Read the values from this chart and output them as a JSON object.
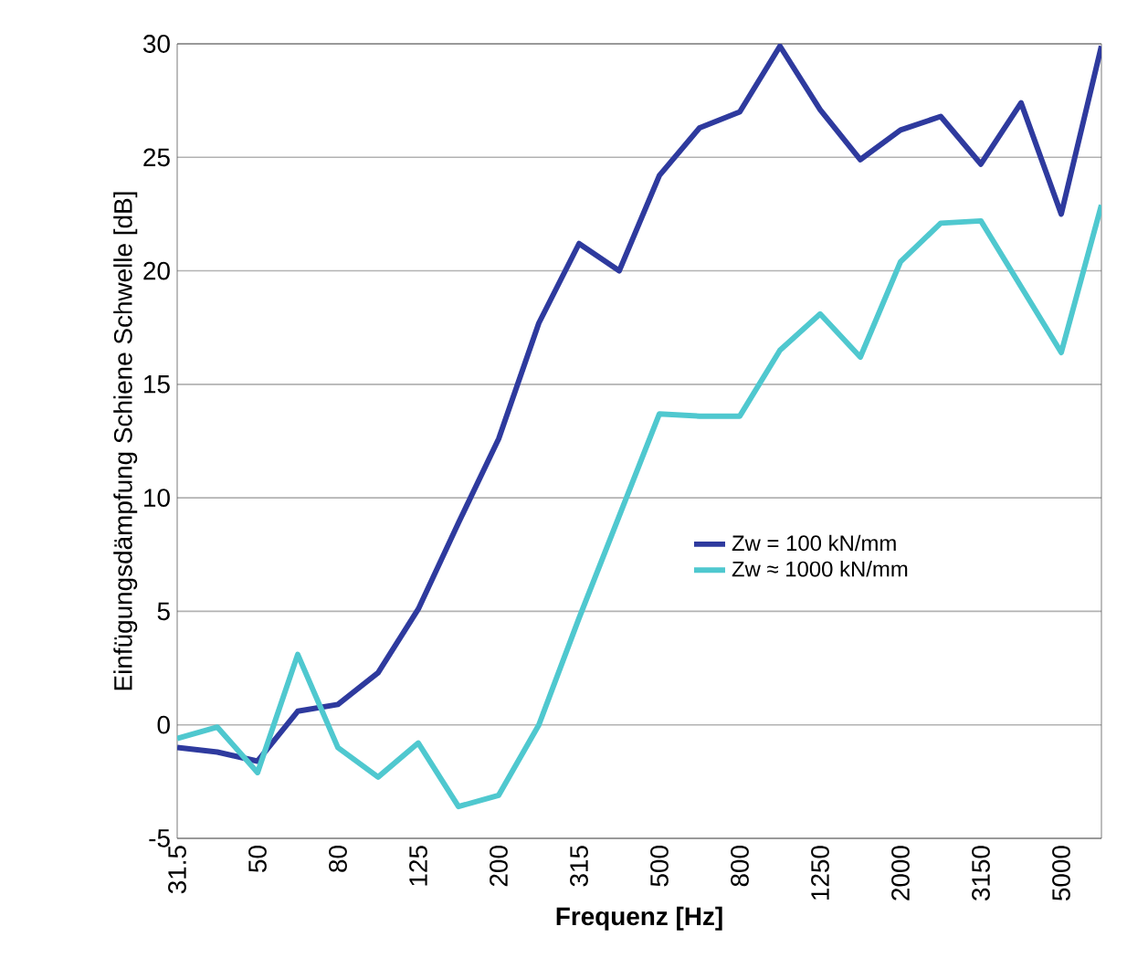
{
  "chart_data": {
    "type": "line",
    "xlabel": "**Frequenz [Hz]**",
    "ylabel": "Einfügungsdämpfung Schiene Schwelle [dB]",
    "categories": [
      "31.5",
      null,
      "50",
      null,
      "80",
      null,
      "125",
      null,
      "200",
      null,
      "315",
      null,
      "500",
      null,
      "800",
      null,
      "1250",
      null,
      "2000",
      null,
      "3150",
      null,
      "5000",
      null
    ],
    "series": [
      {
        "name": "Zw = 100 kN/mm",
        "color": "#2e3a9e",
        "values": [
          -1.0,
          -1.2,
          -1.6,
          0.6,
          0.9,
          2.3,
          5.1,
          8.9,
          12.6,
          17.7,
          21.2,
          20.0,
          24.2,
          26.3,
          27.0,
          29.9,
          27.1,
          24.9,
          26.2,
          26.8,
          24.7,
          27.4,
          22.5,
          29.9
        ]
      },
      {
        "name": "Zw ≈ 1000 kN/mm",
        "color": "#4fc8cf",
        "values": [
          -0.6,
          -0.1,
          -2.1,
          3.1,
          -1.0,
          -2.3,
          -0.8,
          -3.6,
          -3.1,
          0.0,
          4.7,
          9.2,
          13.7,
          13.6,
          13.6,
          16.5,
          18.1,
          16.2,
          20.4,
          22.1,
          22.2,
          19.3,
          16.4,
          22.9
        ]
      }
    ],
    "ylim": [
      -5,
      30
    ],
    "yticks": [
      -5,
      0,
      5,
      10,
      15,
      20,
      25,
      30
    ],
    "grid": "y",
    "legend": "right",
    "marker": "none",
    "line_style": "solid"
  }
}
